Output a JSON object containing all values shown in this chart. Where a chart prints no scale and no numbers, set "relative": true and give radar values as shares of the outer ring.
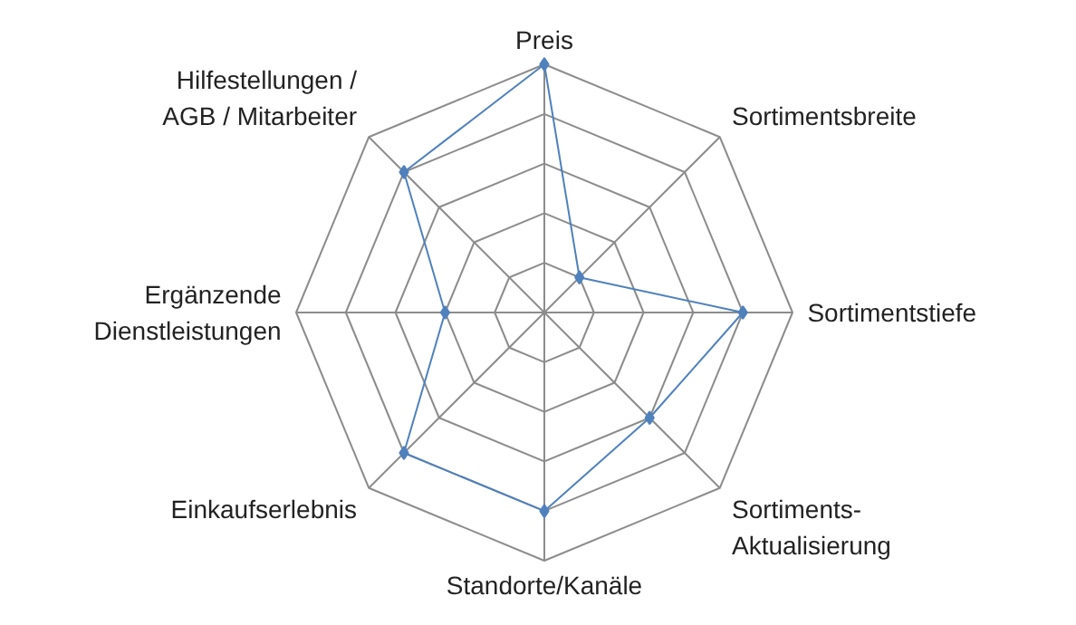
{
  "chart_data": {
    "type": "radar",
    "relative": true,
    "grid": true,
    "marker": "diamond",
    "line_style": "solid",
    "categories": [
      "Preis",
      "Sortimentsbreite",
      "Sortimentstiefe",
      "Sortiments-\nAktualisierung",
      "Standorte/Kanäle",
      "Einkaufserlebnis",
      "Ergänzende\nDienstleistungen",
      "Hilfestellungen /\nAGB / Mitarbeiter"
    ],
    "series": [
      {
        "color": "#4f81bd",
        "values": [
          1.0,
          0.2,
          0.8,
          0.6,
          0.8,
          0.8,
          0.4,
          0.8
        ]
      }
    ]
  }
}
